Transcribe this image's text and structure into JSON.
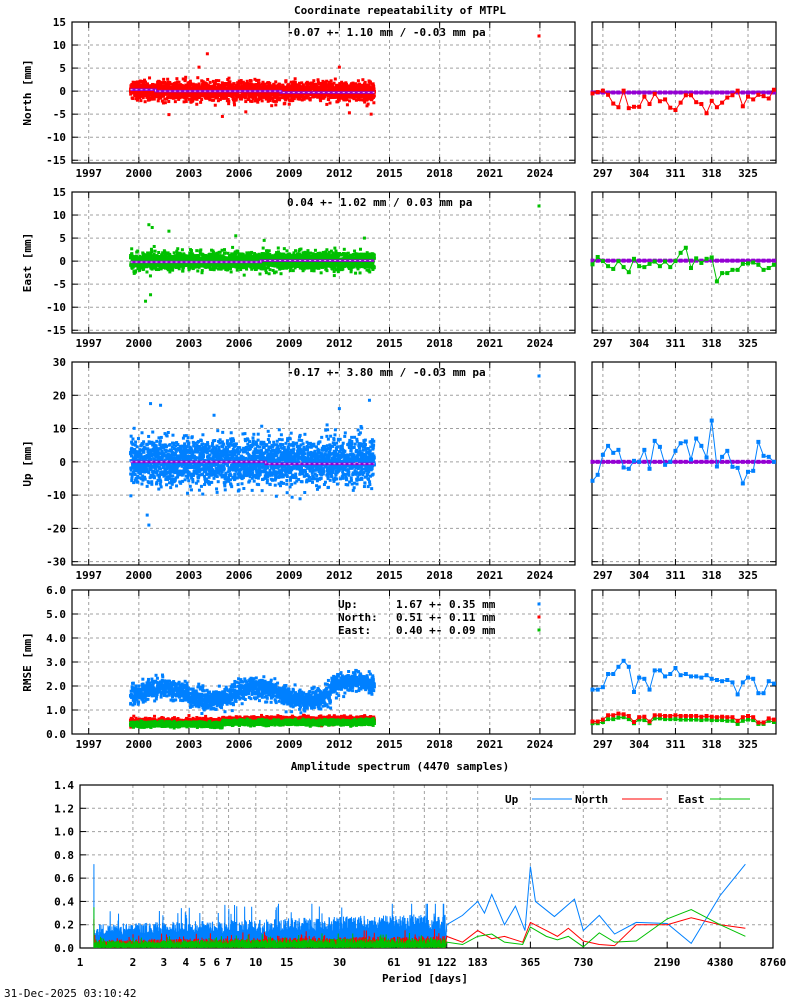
{
  "title": "Coordinate repeatability of MTPL",
  "timestamp": "31-Dec-2025 03:10:42",
  "colors": {
    "north": "#ff0000",
    "east": "#00c000",
    "up": "#0080ff",
    "mean": "#9400d3"
  },
  "chart_data": [
    {
      "type": "scatter",
      "id": "north",
      "ylabel": "North [mm]",
      "legend": "-0.07 +- 1.10 mm / -0.03 mm pa",
      "xlim": [
        1996,
        2026.1
      ],
      "xticks": [
        "1997",
        "2000",
        "2003",
        "2006",
        "2009",
        "2012",
        "2015",
        "2018",
        "2021",
        "2024"
      ],
      "ylim": [
        -15.6,
        15
      ],
      "yticks": [
        -15,
        -10,
        -5,
        0,
        5,
        10,
        15
      ],
      "grid": true,
      "time_range": [
        1999.5,
        2014.1
      ],
      "std": 1.1,
      "mean_steps": [
        [
          1999.5,
          0.3
        ],
        [
          2001.0,
          0.0
        ],
        [
          2008.5,
          -0.3
        ],
        [
          2014.1,
          -0.3
        ]
      ],
      "outliers": [
        [
          2004.1,
          8.1
        ],
        [
          2003.6,
          5.2
        ],
        [
          2012.0,
          5.2
        ],
        [
          2001.8,
          -5.1
        ],
        [
          2005.0,
          -5.5
        ],
        [
          2006.4,
          -4.5
        ],
        [
          2013.9,
          -5.0
        ],
        [
          2012.6,
          -4.7
        ]
      ],
      "recent": {
        "xticks": [
          297,
          304,
          311,
          318,
          325
        ],
        "xlim": [
          294.9,
          330.4
        ],
        "days_start": 295,
        "values": [
          -0.5,
          -0.2,
          0.1,
          -0.8,
          -2.7,
          -3.5,
          0.1,
          -3.7,
          -3.4,
          -3.4,
          -1.2,
          -2.8,
          -0.6,
          -2.2,
          -1.8,
          -3.6,
          -4.1,
          -2.5,
          -0.9,
          -0.9,
          -2.4,
          -2.8,
          -4.8,
          -2.1,
          -3.5,
          -2.5,
          -1.4,
          -0.9,
          0.1,
          -3.3,
          -1.2,
          -1.8,
          -0.8,
          -1.1,
          -1.6,
          0.3
        ],
        "mean": -0.3
      }
    },
    {
      "type": "scatter",
      "id": "east",
      "ylabel": "East [mm]",
      "legend": " 0.04 +- 1.02 mm /  0.03 mm pa",
      "xlim": [
        1996,
        2026.1
      ],
      "xticks": [
        "1997",
        "2000",
        "2003",
        "2006",
        "2009",
        "2012",
        "2015",
        "2018",
        "2021",
        "2024"
      ],
      "ylim": [
        -15.6,
        15
      ],
      "yticks": [
        -15,
        -10,
        -5,
        0,
        5,
        10,
        15
      ],
      "grid": true,
      "time_range": [
        1999.5,
        2014.1
      ],
      "std": 1.02,
      "mean_steps": [
        [
          1999.5,
          -0.2
        ],
        [
          2007.3,
          0.1
        ],
        [
          2014.1,
          0.1
        ]
      ],
      "outliers": [
        [
          2000.6,
          7.9
        ],
        [
          2000.8,
          7.3
        ],
        [
          2001.8,
          6.5
        ],
        [
          2000.4,
          -8.7
        ],
        [
          2000.7,
          -7.3
        ],
        [
          2005.8,
          5.5
        ],
        [
          2007.5,
          4.5
        ],
        [
          2013.5,
          5.0
        ]
      ],
      "recent": {
        "xticks": [
          297,
          304,
          311,
          318,
          325
        ],
        "xlim": [
          294.9,
          330.4
        ],
        "days_start": 295,
        "values": [
          -0.7,
          0.9,
          0,
          -1.1,
          -1.7,
          0,
          -1.3,
          -2.4,
          0.5,
          -1.1,
          -1.3,
          -0.6,
          -0.1,
          -1.1,
          -0.1,
          -1.3,
          0,
          1.8,
          2.9,
          -1.5,
          0.6,
          -0.4,
          0.5,
          0.8,
          -4.4,
          -2.6,
          -2.6,
          -1.9,
          -1.9,
          -0.6,
          -0.5,
          -0.3,
          -0.8,
          -1.9,
          -1.5,
          -0.8
        ],
        "mean": 0.1
      }
    },
    {
      "type": "scatter",
      "id": "up",
      "ylabel": "Up [mm]",
      "legend": "-0.17 +- 3.80 mm / -0.03 mm pa",
      "xlim": [
        1996,
        2026.1
      ],
      "xticks": [
        "1997",
        "2000",
        "2003",
        "2006",
        "2009",
        "2012",
        "2015",
        "2018",
        "2021",
        "2024"
      ],
      "ylim": [
        -31,
        30
      ],
      "yticks": [
        -30,
        -20,
        -10,
        0,
        10,
        20,
        30
      ],
      "grid": true,
      "time_range": [
        1999.5,
        2014.1
      ],
      "std": 3.8,
      "mean_steps": [
        [
          1999.5,
          0.0
        ],
        [
          2007.6,
          -0.6
        ],
        [
          2014.1,
          -0.6
        ]
      ],
      "outliers": [
        [
          2000.6,
          -19
        ],
        [
          2000.5,
          -16
        ],
        [
          2001.3,
          17
        ],
        [
          2000.7,
          17.5
        ],
        [
          2012.0,
          16
        ],
        [
          2013.8,
          18.5
        ],
        [
          2004.5,
          14
        ]
      ],
      "recent": {
        "xticks": [
          297,
          304,
          311,
          318,
          325
        ],
        "xlim": [
          294.9,
          330.4
        ],
        "days_start": 295,
        "values": [
          -5.7,
          -3.9,
          2.1,
          4.8,
          2.7,
          3.6,
          -1.7,
          -2.1,
          0.3,
          0,
          3.6,
          -2.1,
          6.3,
          4.5,
          -0.9,
          0,
          3.3,
          5.6,
          6.1,
          0.7,
          7,
          4.8,
          1.3,
          12.4,
          -1.4,
          1.5,
          3.3,
          -1.5,
          -1.8,
          -6.5,
          -3,
          -2.7,
          6,
          1.8,
          1.5,
          0
        ],
        "mean": 0.0
      }
    },
    {
      "type": "scatter",
      "id": "rmse",
      "ylabel": "RMSE [mm]",
      "legend": [
        {
          "name": "Up:",
          "value": "1.67 +- 0.35 mm",
          "color": "#0080ff"
        },
        {
          "name": "North:",
          "value": "0.51 +- 0.11 mm",
          "color": "#ff0000"
        },
        {
          "name": "East:",
          "value": "0.40 +- 0.09 mm",
          "color": "#00c000"
        }
      ],
      "xlim": [
        1996,
        2026.1
      ],
      "xticks": [
        "1997",
        "2000",
        "2003",
        "2006",
        "2009",
        "2012",
        "2015",
        "2018",
        "2021",
        "2024"
      ],
      "ylim": [
        0,
        6
      ],
      "yticks": [
        "0.0",
        "1.0",
        "2.0",
        "3.0",
        "4.0",
        "5.0",
        "6.0"
      ],
      "grid": true,
      "time_range": [
        1999.5,
        2014.1
      ],
      "series": [
        {
          "id": "up",
          "mean": 1.67,
          "std": 0.35
        },
        {
          "id": "north",
          "mean": 0.51,
          "std": 0.11
        },
        {
          "id": "east",
          "mean": 0.4,
          "std": 0.09
        }
      ],
      "recent": {
        "xticks": [
          297,
          304,
          311,
          318,
          325
        ],
        "xlim": [
          294.9,
          330.4
        ],
        "days_start": 295,
        "up": [
          1.85,
          1.85,
          1.95,
          2.5,
          2.5,
          2.8,
          3.05,
          2.8,
          1.75,
          2.35,
          2.3,
          1.85,
          2.65,
          2.65,
          2.4,
          2.5,
          2.75,
          2.45,
          2.5,
          2.4,
          2.4,
          2.35,
          2.45,
          2.3,
          2.25,
          2.2,
          2.25,
          2.15,
          1.65,
          2.15,
          2.35,
          2.3,
          1.7,
          1.7,
          2.2,
          2.1
        ],
        "north": [
          0.52,
          0.52,
          0.6,
          0.78,
          0.78,
          0.85,
          0.82,
          0.75,
          0.5,
          0.7,
          0.72,
          0.52,
          0.78,
          0.78,
          0.75,
          0.75,
          0.78,
          0.75,
          0.75,
          0.75,
          0.75,
          0.72,
          0.75,
          0.72,
          0.7,
          0.72,
          0.7,
          0.7,
          0.55,
          0.7,
          0.75,
          0.7,
          0.48,
          0.48,
          0.65,
          0.6
        ],
        "east": [
          0.45,
          0.45,
          0.5,
          0.62,
          0.62,
          0.68,
          0.7,
          0.62,
          0.45,
          0.6,
          0.58,
          0.45,
          0.65,
          0.65,
          0.62,
          0.62,
          0.62,
          0.6,
          0.6,
          0.6,
          0.6,
          0.58,
          0.6,
          0.58,
          0.58,
          0.58,
          0.55,
          0.55,
          0.42,
          0.55,
          0.6,
          0.58,
          0.42,
          0.42,
          0.55,
          0.5
        ]
      }
    },
    {
      "type": "line",
      "id": "spectrum",
      "title": "Amplitude spectrum (4470 samples)",
      "xlabel": "Period [days]",
      "xscale": "log",
      "xlim": [
        1,
        8760
      ],
      "xticks": [
        1,
        2,
        3,
        4,
        5,
        6,
        7,
        10,
        15,
        30,
        61,
        91,
        122,
        183,
        365,
        730,
        2190,
        4380,
        8760
      ],
      "ylim": [
        0,
        1.4
      ],
      "yticks": [
        "0.0",
        "0.2",
        "0.4",
        "0.6",
        "0.8",
        "1.0",
        "1.2",
        "1.4"
      ],
      "grid": true,
      "legend_position": "top-right",
      "series": [
        {
          "name": "Up",
          "short_period_level": [
            0.1,
            0.2
          ],
          "peak_at_start": 0.72,
          "long_period": [
            [
              122,
              0.2
            ],
            [
              150,
              0.28
            ],
            [
              183,
              0.4
            ],
            [
              200,
              0.3
            ],
            [
              220,
              0.46
            ],
            [
              260,
              0.2
            ],
            [
              300,
              0.36
            ],
            [
              340,
              0.15
            ],
            [
              365,
              0.7
            ],
            [
              390,
              0.4
            ],
            [
              500,
              0.27
            ],
            [
              650,
              0.42
            ],
            [
              730,
              0.15
            ],
            [
              900,
              0.28
            ],
            [
              1100,
              0.12
            ],
            [
              1460,
              0.22
            ],
            [
              2190,
              0.21
            ],
            [
              3000,
              0.04
            ],
            [
              4380,
              0.45
            ],
            [
              6100,
              0.72
            ]
          ]
        },
        {
          "name": "North",
          "short_period_level": [
            0.03,
            0.07
          ],
          "peak_at_start": 0.25,
          "long_period": [
            [
              122,
              0.1
            ],
            [
              150,
              0.05
            ],
            [
              183,
              0.15
            ],
            [
              220,
              0.08
            ],
            [
              260,
              0.1
            ],
            [
              330,
              0.05
            ],
            [
              365,
              0.22
            ],
            [
              450,
              0.15
            ],
            [
              520,
              0.1
            ],
            [
              600,
              0.17
            ],
            [
              730,
              0.06
            ],
            [
              900,
              0.03
            ],
            [
              1100,
              0.02
            ],
            [
              1460,
              0.2
            ],
            [
              2190,
              0.2
            ],
            [
              3000,
              0.26
            ],
            [
              4380,
              0.2
            ],
            [
              6100,
              0.17
            ]
          ]
        },
        {
          "name": "East",
          "short_period_level": [
            0.02,
            0.06
          ],
          "peak_at_start": 0.35,
          "long_period": [
            [
              122,
              0.05
            ],
            [
              150,
              0.03
            ],
            [
              183,
              0.1
            ],
            [
              220,
              0.12
            ],
            [
              260,
              0.05
            ],
            [
              330,
              0.03
            ],
            [
              365,
              0.18
            ],
            [
              450,
              0.1
            ],
            [
              520,
              0.07
            ],
            [
              600,
              0.1
            ],
            [
              730,
              0.01
            ],
            [
              900,
              0.13
            ],
            [
              1100,
              0.05
            ],
            [
              1460,
              0.06
            ],
            [
              2190,
              0.25
            ],
            [
              3000,
              0.33
            ],
            [
              4380,
              0.2
            ],
            [
              6100,
              0.1
            ]
          ]
        }
      ]
    }
  ]
}
